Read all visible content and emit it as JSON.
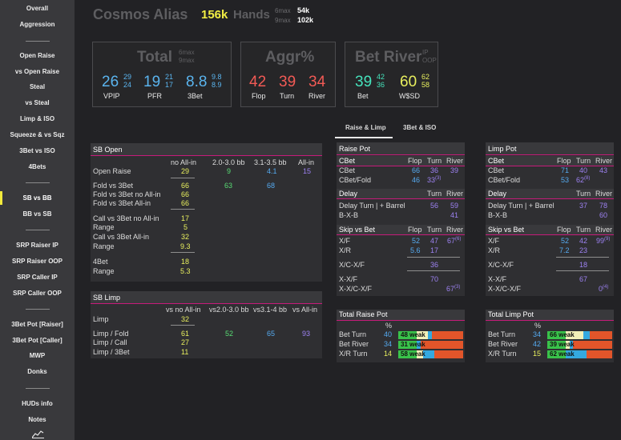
{
  "sidebar": {
    "items": [
      "Overall",
      "Aggression",
      "Open Raise",
      "vs Open Raise",
      "Steal",
      "vs Steal",
      "Limp & ISO",
      "Squeeze & vs Sqz",
      "3Bet vs ISO",
      "4Bets",
      "SB vs BB",
      "BB vs SB",
      "SRP Raiser IP",
      "SRP Raiser OOP",
      "SRP Caller IP",
      "SRP Caller OOP",
      "3Bet Pot [Raiser]",
      "3Bet Pot [Caller]",
      "MWP",
      "Donks",
      "HUDs info",
      "Notes"
    ],
    "active": "SB vs BB"
  },
  "header": {
    "player": "Cosmos Alias",
    "hands_count": "156k",
    "hands_label": "Hands",
    "sixmax_label": "6max",
    "sixmax_val": "54k",
    "ninemax_label": "9max",
    "ninemax_val": "102k"
  },
  "total_box": {
    "title": "Total",
    "sub1": "6max",
    "sub2": "9max",
    "vpip": "26",
    "vpip_6": "29",
    "vpip_9": "24",
    "vpip_label": "VPIP",
    "pfr": "19",
    "pfr_6": "21",
    "pfr_9": "17",
    "pfr_label": "PFR",
    "threebet": "8.8",
    "threebet_6": "9.8",
    "threebet_9": "8.9",
    "threebet_label": "3Bet"
  },
  "aggr_box": {
    "title": "Aggr%",
    "flop": "42",
    "flop_label": "Flop",
    "turn": "39",
    "turn_label": "Turn",
    "river": "34",
    "river_label": "River"
  },
  "betriver_box": {
    "title": "Bet River",
    "sub1": "IP",
    "sub2": "OOP",
    "bet": "39",
    "bet_ip": "42",
    "bet_oop": "36",
    "bet_label": "Bet",
    "wsd": "60",
    "wsd_ip": "62",
    "wsd_oop": "58",
    "wsd_label": "W$SD"
  },
  "tabs": {
    "t1": "Raise & Limp",
    "t2": "3Bet & ISO"
  },
  "sb_open": {
    "title": "SB Open",
    "cols": [
      "no All-in",
      "2.0-3.0 bb",
      "3.1-3.5 bb",
      "All-in"
    ],
    "open_raise": "Open Raise",
    "or_noallin": "29",
    "or_2030": "9",
    "or_3135": "4.1",
    "or_allin": "15",
    "fold_vs_3bet": "Fold vs 3Bet",
    "f3_noallin": "66",
    "f3_2030": "63",
    "f3_3135": "68",
    "fold_vs_3bet_noallin": "Fold vs 3Bet no All-in",
    "f3n_val": "66",
    "fold_vs_3bet_allin": "Fold vs 3Bet All-in",
    "f3a_val": "66",
    "call_vs_3bet_noallin": "Call vs 3Bet no All-in",
    "c3n_val": "17",
    "range1": "Range",
    "range1_val": "5",
    "call_vs_3bet_allin": "Call vs 3Bet All-in",
    "c3a_val": "32",
    "range2": "Range",
    "range2_val": "9.3",
    "fourbet": "4Bet",
    "fourbet_val": "18",
    "range3": "Range",
    "range3_val": "5.3"
  },
  "sb_limp": {
    "title": "SB Limp",
    "cols": [
      "vs no All-in",
      "vs2.0-3.0 bb",
      "vs3.1-4 bb",
      "vs All-in"
    ],
    "limp": "Limp",
    "limp_val": "32",
    "limp_fold": "Limp / Fold",
    "lf_1": "61",
    "lf_2": "52",
    "lf_3": "65",
    "lf_4": "93",
    "limp_call": "Limp / Call",
    "lc_1": "27",
    "limp_3bet": "Limp / 3Bet",
    "l3_1": "11"
  },
  "raise_pot": {
    "title": "Raise Pot",
    "cols": [
      "Flop",
      "Turn",
      "River"
    ],
    "cbet_head": "CBet",
    "cbet": "CBet",
    "cbet_f": "66",
    "cbet_t": "36",
    "cbet_r": "39",
    "cbetfold": "CBet/Fold",
    "cf_f": "46",
    "cf_t": "33",
    "cf_t_sup": "(3)",
    "delay_head": "Delay",
    "delay_cols": [
      "Turn",
      "River"
    ],
    "delay_turn": "Delay Turn | + Barrel",
    "dt_t": "56",
    "dt_r": "59",
    "bxb": "B-X-B",
    "bxb_r": "41",
    "skip_head": "Skip vs Bet",
    "skip_cols": [
      "Flop",
      "Turn",
      "River"
    ],
    "xf": "X/F",
    "xf_f": "52",
    "xf_t": "47",
    "xf_r": "67",
    "xf_r_sup": "(6)",
    "xr": "X/R",
    "xr_f": "5.6",
    "xr_t": "17",
    "xcxf": "X/C-X/F",
    "xcxf_t": "36",
    "xxf": "X-X/F",
    "xxf_t": "70",
    "xxcxf": "X-X/C-X/F",
    "xxcxf_r": "67",
    "xxcxf_r_sup": "(3)"
  },
  "limp_pot": {
    "title": "Limp Pot",
    "cols": [
      "Flop",
      "Turn",
      "River"
    ],
    "cbet_head": "CBet",
    "cbet": "CBet",
    "cbet_f": "71",
    "cbet_t": "40",
    "cbet_r": "43",
    "cbetfold": "CBet/Fold",
    "cf_f": "53",
    "cf_t": "62",
    "cf_t_sup": "(8)",
    "delay_head": "Delay",
    "delay_cols": [
      "Turn",
      "River"
    ],
    "delay_turn": "Delay Turn | + Barrel",
    "dt_t": "37",
    "dt_r": "78",
    "bxb": "B-X-B",
    "bxb_r": "60",
    "skip_head": "Skip vs Bet",
    "skip_cols": [
      "Flop",
      "Turn",
      "River"
    ],
    "xf": "X/F",
    "xf_f": "52",
    "xf_t": "42",
    "xf_r": "99",
    "xf_r_sup": "(9)",
    "xr": "X/R",
    "xr_f": "7.2",
    "xr_t": "23",
    "xcxf": "X/C-X/F",
    "xcxf_t": "18",
    "xxf": "X-X/F",
    "xxf_t": "67",
    "xxcxf": "X-X/C-X/F",
    "xxcxf_r": "0",
    "xxcxf_r_sup": "(4)"
  },
  "total_raise_pot": {
    "title": "Total Raise Pot",
    "pct_head": "%",
    "rows": [
      {
        "label": "Bet Turn",
        "pct": "40",
        "bar": "48 weak",
        "green": 0.28,
        "yellow": 0.18,
        "blue": 0.06
      },
      {
        "label": "Bet River",
        "pct": "34",
        "bar": "31 weak",
        "green": 0.28,
        "yellow": 0.0,
        "blue": 0.06
      },
      {
        "label": "X/R Turn",
        "pct": "14",
        "bar": "58 weak",
        "green": 0.28,
        "yellow": 0.1,
        "blue": 0.18
      }
    ]
  },
  "total_limp_pot": {
    "title": "Total Limp Pot",
    "pct_head": "%",
    "rows": [
      {
        "label": "Bet Turn",
        "pct": "34",
        "bar": "66 weak",
        "green": 0.28,
        "yellow": 0.28,
        "blue": 0.1
      },
      {
        "label": "Bet River",
        "pct": "42",
        "bar": "39 weak",
        "green": 0.28,
        "yellow": 0.06,
        "blue": 0.06
      },
      {
        "label": "X/R Turn",
        "pct": "15",
        "bar": "62 weak",
        "green": 0.28,
        "yellow": 0.0,
        "blue": 0.32
      }
    ]
  },
  "colors": {
    "accent_pink": "#c61b7a",
    "active_marker": "#f2ea3c",
    "bar_green": "#39c24a",
    "bar_yellow": "#f2f0b8",
    "bar_blue": "#34a9e0",
    "bar_orange": "#e2552a"
  }
}
